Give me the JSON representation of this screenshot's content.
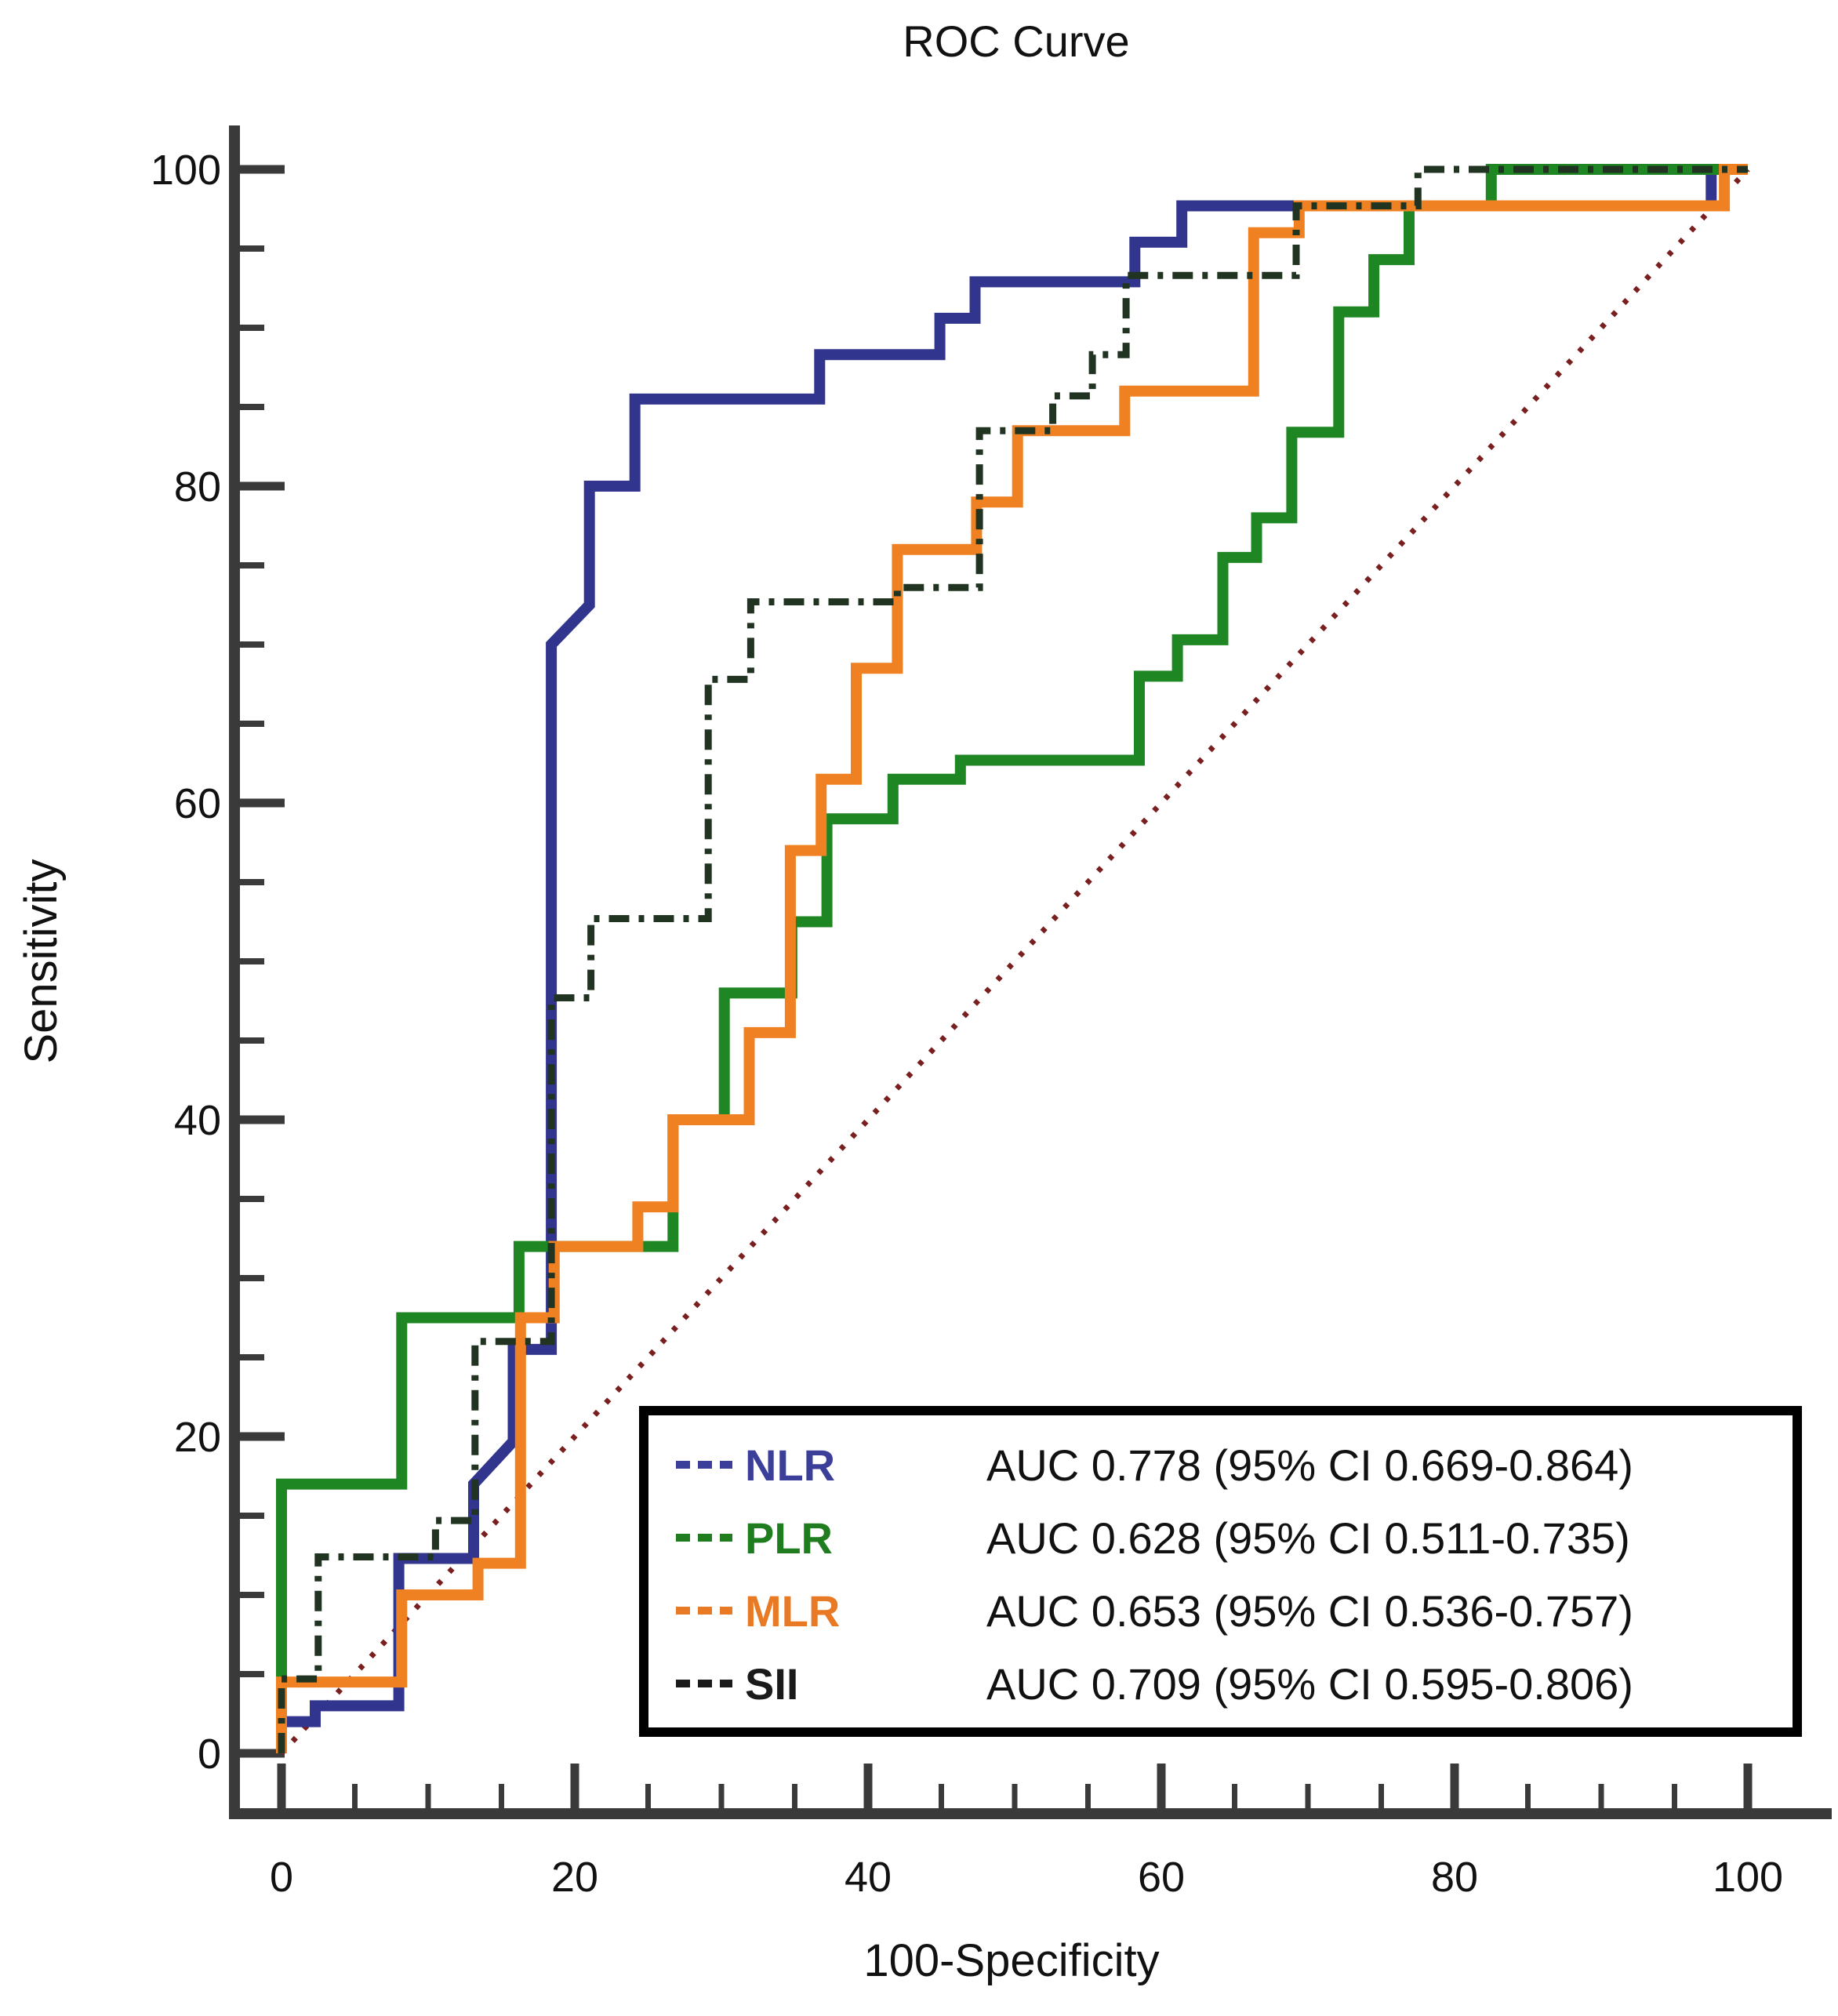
{
  "title": "ROC Curve",
  "x_axis": {
    "label": "100-Specificity",
    "min": 0,
    "max": 100,
    "major_ticks": [
      0,
      20,
      40,
      60,
      80,
      100
    ],
    "minor_tick_step": 5
  },
  "y_axis": {
    "label": "Sensitivity",
    "min": 0,
    "max": 100,
    "major_ticks": [
      0,
      20,
      40,
      60,
      80,
      100
    ],
    "minor_tick_step": 5
  },
  "colors": {
    "axis": "#3a3a3a",
    "title": "#111111",
    "reference_line": "#7a1f1f",
    "legend_border": "#000000",
    "legend_background": "#ffffff"
  },
  "chart_data": {
    "type": "line",
    "subtype": "roc-step-curves",
    "title": "ROC Curve",
    "xlabel": "100-Specificity",
    "ylabel": "Sensitivity",
    "xlim": [
      0,
      100
    ],
    "ylim": [
      0,
      100
    ],
    "grid": false,
    "legend_position": "lower-right-box",
    "reference_line": {
      "name": "chance-diagonal",
      "style": "dotted",
      "color": "#7a1f1f",
      "points": [
        [
          0,
          0
        ],
        [
          100,
          100
        ]
      ]
    },
    "series": [
      {
        "name": "NLR",
        "color": "#31358e",
        "style": "solid",
        "auc_text": "AUC 0.778 (95% CI 0.669-0.864)",
        "points": [
          [
            0,
            0
          ],
          [
            0,
            2
          ],
          [
            2.3,
            2
          ],
          [
            2.3,
            3
          ],
          [
            8,
            3
          ],
          [
            8,
            12.3
          ],
          [
            13.1,
            12.3
          ],
          [
            13.1,
            17
          ],
          [
            15.8,
            19.7
          ],
          [
            15.8,
            25.5
          ],
          [
            18.4,
            25.5
          ],
          [
            18.4,
            70
          ],
          [
            21,
            72.5
          ],
          [
            21,
            80
          ],
          [
            24.1,
            80
          ],
          [
            24.1,
            85.5
          ],
          [
            36.7,
            85.5
          ],
          [
            36.7,
            88.3
          ],
          [
            44.9,
            88.3
          ],
          [
            44.9,
            90.6
          ],
          [
            47.3,
            90.6
          ],
          [
            47.3,
            92.9
          ],
          [
            58.2,
            92.9
          ],
          [
            58.2,
            95.4
          ],
          [
            61.4,
            95.4
          ],
          [
            61.4,
            97.7
          ],
          [
            97.5,
            97.7
          ],
          [
            97.5,
            100
          ],
          [
            100,
            100
          ]
        ]
      },
      {
        "name": "PLR",
        "color": "#1e8622",
        "style": "solid",
        "auc_text": "AUC 0.628 (95% CI 0.511-0.735)",
        "points": [
          [
            0,
            0
          ],
          [
            0,
            17
          ],
          [
            8.2,
            17
          ],
          [
            8.2,
            27.5
          ],
          [
            16.2,
            27.5
          ],
          [
            16.2,
            32
          ],
          [
            26.7,
            32
          ],
          [
            26.7,
            40
          ],
          [
            30.2,
            40
          ],
          [
            30.2,
            48
          ],
          [
            34.8,
            48
          ],
          [
            34.8,
            52.5
          ],
          [
            37.2,
            52.5
          ],
          [
            37.2,
            59
          ],
          [
            41.7,
            59
          ],
          [
            41.7,
            61.5
          ],
          [
            46.3,
            61.5
          ],
          [
            46.3,
            62.7
          ],
          [
            58.5,
            62.7
          ],
          [
            58.5,
            68
          ],
          [
            61.1,
            68
          ],
          [
            61.1,
            70.3
          ],
          [
            64.2,
            70.3
          ],
          [
            64.2,
            75.5
          ],
          [
            66.5,
            75.5
          ],
          [
            66.5,
            78
          ],
          [
            68.9,
            78
          ],
          [
            68.9,
            83.4
          ],
          [
            72.1,
            83.4
          ],
          [
            72.1,
            91
          ],
          [
            74.5,
            91
          ],
          [
            74.5,
            94.3
          ],
          [
            76.9,
            94.3
          ],
          [
            76.9,
            97.7
          ],
          [
            82.5,
            97.7
          ],
          [
            82.5,
            100
          ],
          [
            100,
            100
          ]
        ]
      },
      {
        "name": "MLR",
        "color": "#f08122",
        "style": "solid",
        "auc_text": "AUC 0.653 (95% CI 0.536-0.757)",
        "points": [
          [
            0,
            0
          ],
          [
            0,
            4.5
          ],
          [
            8.2,
            4.5
          ],
          [
            8.2,
            10
          ],
          [
            13.4,
            10
          ],
          [
            13.4,
            12
          ],
          [
            16.3,
            12
          ],
          [
            16.3,
            27.5
          ],
          [
            18.6,
            27.5
          ],
          [
            18.6,
            32
          ],
          [
            24.3,
            32
          ],
          [
            24.3,
            34.5
          ],
          [
            26.7,
            34.5
          ],
          [
            26.7,
            40
          ],
          [
            31.9,
            40
          ],
          [
            31.9,
            45.5
          ],
          [
            34.7,
            45.5
          ],
          [
            34.7,
            57
          ],
          [
            36.8,
            57
          ],
          [
            36.8,
            61.5
          ],
          [
            39.2,
            61.5
          ],
          [
            39.2,
            68.5
          ],
          [
            42,
            68.5
          ],
          [
            42,
            76
          ],
          [
            47.4,
            76
          ],
          [
            47.4,
            79
          ],
          [
            50.2,
            79
          ],
          [
            50.2,
            83.5
          ],
          [
            57.5,
            83.5
          ],
          [
            57.5,
            86
          ],
          [
            66.3,
            86
          ],
          [
            66.3,
            96
          ],
          [
            69.4,
            96
          ],
          [
            69.4,
            97.7
          ],
          [
            98.4,
            97.7
          ],
          [
            98.4,
            100
          ],
          [
            100,
            100
          ]
        ]
      },
      {
        "name": "SII",
        "color": "#213421",
        "style": "dash-dot",
        "auc_text": "AUC 0.709 (95% CI 0.595-0.806)",
        "points": [
          [
            0,
            0
          ],
          [
            0,
            4.7
          ],
          [
            2.5,
            4.7
          ],
          [
            2.5,
            12.4
          ],
          [
            10.5,
            12.4
          ],
          [
            10.5,
            14.7
          ],
          [
            13.2,
            14.7
          ],
          [
            13.2,
            26
          ],
          [
            18.4,
            26
          ],
          [
            18.4,
            47.7
          ],
          [
            21.1,
            47.7
          ],
          [
            21.1,
            52.7
          ],
          [
            29.1,
            52.7
          ],
          [
            29.1,
            67.8
          ],
          [
            32,
            67.8
          ],
          [
            32,
            72.7
          ],
          [
            42,
            72.7
          ],
          [
            42,
            73.6
          ],
          [
            47.6,
            73.6
          ],
          [
            47.6,
            83.5
          ],
          [
            52.6,
            83.5
          ],
          [
            52.6,
            85.7
          ],
          [
            55.3,
            85.7
          ],
          [
            55.3,
            88.3
          ],
          [
            57.6,
            88.3
          ],
          [
            57.6,
            93.3
          ],
          [
            69.2,
            93.3
          ],
          [
            69.2,
            97.7
          ],
          [
            77.5,
            97.7
          ],
          [
            77.5,
            100
          ],
          [
            100,
            100
          ]
        ]
      }
    ],
    "legend": {
      "entries": [
        {
          "label": "NLR",
          "label_color": "#3b3f99",
          "auc_text": "AUC 0.778 (95% CI 0.669-0.864)"
        },
        {
          "label": "PLR",
          "label_color": "#1f7d1f",
          "auc_text": "AUC 0.628 (95% CI 0.511-0.735)"
        },
        {
          "label": "MLR",
          "label_color": "#e87a25",
          "auc_text": "AUC 0.653 (95% CI 0.536-0.757)"
        },
        {
          "label": "SII",
          "label_color": "#1a1a1a",
          "auc_text": "AUC 0.709 (95% CI 0.595-0.806)"
        }
      ]
    }
  }
}
